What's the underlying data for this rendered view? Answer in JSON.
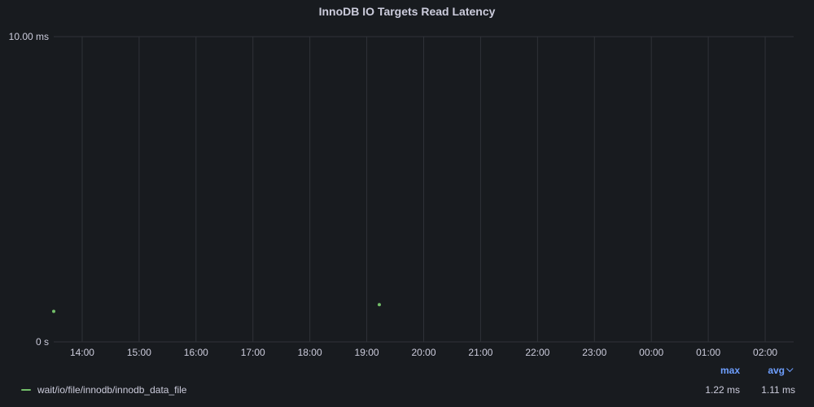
{
  "panel": {
    "title": "InnoDB IO Targets Read Latency"
  },
  "colors": {
    "background": "#181b1f",
    "grid": "#2f3238",
    "text": "#ccccdc",
    "series": "#73bf69",
    "accent": "#6e9fff"
  },
  "legend": {
    "columns": {
      "max": "max",
      "avg": "avg"
    },
    "sort_icon": "chevron-down-icon",
    "rows": [
      {
        "name": "wait/io/file/innodb/innodb_data_file",
        "max": "1.22 ms",
        "avg": "1.11 ms"
      }
    ]
  },
  "chart_data": {
    "type": "scatter",
    "title": "InnoDB IO Targets Read Latency",
    "xlabel": "",
    "ylabel": "",
    "y_unit": "ms",
    "ylim": [
      0,
      10
    ],
    "y_ticks": [
      {
        "value": 0,
        "label": "0 s"
      },
      {
        "value": 10,
        "label": "10.00 ms"
      }
    ],
    "x_unit": "hours",
    "xlim": [
      13.5,
      26.5
    ],
    "x_ticks": [
      {
        "value": 14,
        "label": "14:00"
      },
      {
        "value": 15,
        "label": "15:00"
      },
      {
        "value": 16,
        "label": "16:00"
      },
      {
        "value": 17,
        "label": "17:00"
      },
      {
        "value": 18,
        "label": "18:00"
      },
      {
        "value": 19,
        "label": "19:00"
      },
      {
        "value": 20,
        "label": "20:00"
      },
      {
        "value": 21,
        "label": "21:00"
      },
      {
        "value": 22,
        "label": "22:00"
      },
      {
        "value": 23,
        "label": "23:00"
      },
      {
        "value": 24,
        "label": "00:00"
      },
      {
        "value": 25,
        "label": "01:00"
      },
      {
        "value": 26,
        "label": "02:00"
      }
    ],
    "grid": true,
    "legend_position": "bottom",
    "series": [
      {
        "name": "wait/io/file/innodb/innodb_data_file",
        "points": [
          {
            "x": 13.5,
            "y": 1.0
          },
          {
            "x": 19.22,
            "y": 1.22
          }
        ]
      }
    ]
  }
}
